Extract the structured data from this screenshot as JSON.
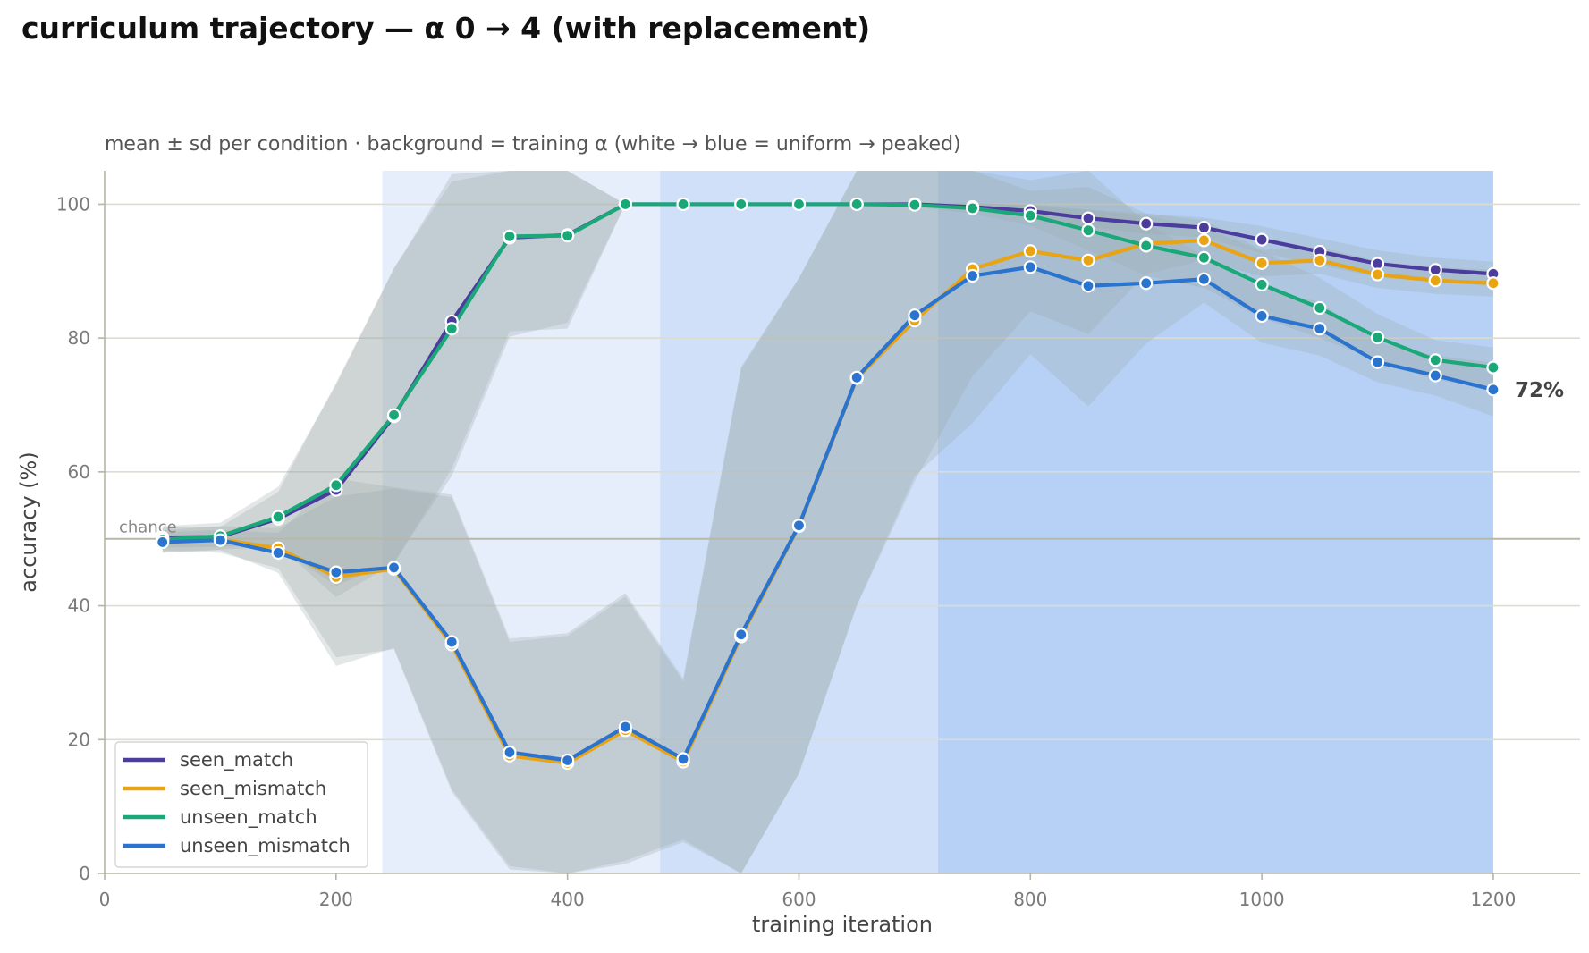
{
  "chart_data": {
    "type": "line",
    "title": "curriculum trajectory — α 0 → 4 (with replacement)",
    "subtitle": "mean ± sd per condition · background = training α (white → blue = uniform → peaked)",
    "xlabel": "training iteration",
    "ylabel": "accuracy (%)",
    "xlim": [
      0,
      1275
    ],
    "ylim": [
      0,
      105
    ],
    "xticks": [
      0,
      200,
      400,
      600,
      800,
      1000,
      1200
    ],
    "yticks": [
      0,
      20,
      40,
      60,
      80,
      100
    ],
    "grid": "horizontal",
    "legend_position": "lower-left",
    "chance": {
      "value": 50,
      "label": "chance"
    },
    "end_label": "72%",
    "background_bands": [
      {
        "x0": 240,
        "x1": 480,
        "color": "#e6eefb"
      },
      {
        "x0": 480,
        "x1": 720,
        "color": "#d0e0f8"
      },
      {
        "x0": 720,
        "x1": 1200,
        "color": "#b6d1f5"
      }
    ],
    "x": [
      50,
      100,
      150,
      200,
      250,
      300,
      350,
      400,
      450,
      500,
      550,
      600,
      650,
      700,
      750,
      800,
      850,
      900,
      950,
      1000,
      1050,
      1100,
      1150,
      1200
    ],
    "series": [
      {
        "name": "seen_match",
        "color": "#4b3c9e",
        "values": [
          50.2,
          50.3,
          53.0,
          57.3,
          68.3,
          82.5,
          95.0,
          95.4,
          100,
          100,
          100,
          100,
          100,
          100,
          99.6,
          99.0,
          97.9,
          97.1,
          96.5,
          94.7,
          92.9,
          91.1,
          90.2,
          89.6
        ],
        "sd": [
          1.5,
          1.5,
          4.0,
          16.0,
          22.0,
          22.0,
          14.0,
          14.0,
          0,
          0,
          0,
          0,
          0,
          0,
          0.5,
          1.0,
          1.3,
          1.5,
          1.5,
          2.0,
          2.0,
          2.0,
          1.8,
          1.8
        ]
      },
      {
        "name": "seen_mismatch",
        "color": "#e8a412",
        "values": [
          49.8,
          49.9,
          48.6,
          44.3,
          45.5,
          34.2,
          17.6,
          16.5,
          21.4,
          16.7,
          35.4,
          51.9,
          74.0,
          82.6,
          90.3,
          93.0,
          91.6,
          94.1,
          94.6,
          91.2,
          91.6,
          89.5,
          88.6,
          88.2
        ],
        "sd": [
          1.5,
          2.0,
          3.0,
          12.0,
          12.0,
          22.0,
          17.0,
          19.0,
          20.0,
          12.0,
          40.0,
          37.0,
          34.0,
          24.0,
          16.0,
          9.0,
          11.0,
          4.5,
          3.0,
          2.0,
          2.0,
          2.0,
          2.0,
          2.0
        ]
      },
      {
        "name": "unseen_match",
        "color": "#1aa878",
        "values": [
          49.9,
          50.4,
          53.3,
          58.0,
          68.5,
          81.4,
          95.2,
          95.3,
          100,
          100,
          100,
          100,
          100,
          99.9,
          99.4,
          98.3,
          96.1,
          93.8,
          92.0,
          88.0,
          84.5,
          80.1,
          76.7,
          75.6
        ],
        "sd": [
          2.0,
          2.0,
          4.5,
          15.0,
          22.0,
          22.0,
          15.0,
          13.0,
          0,
          0,
          0,
          0,
          0,
          0.3,
          0.8,
          1.5,
          3.0,
          4.5,
          4.5,
          5.0,
          4.5,
          3.5,
          3.0,
          3.0
        ]
      },
      {
        "name": "unseen_mismatch",
        "color": "#2a74d0",
        "values": [
          49.5,
          49.8,
          47.9,
          45.0,
          45.7,
          34.6,
          18.1,
          16.9,
          21.9,
          17.1,
          35.7,
          52.0,
          74.1,
          83.4,
          89.3,
          90.6,
          87.8,
          88.2,
          88.8,
          83.3,
          81.4,
          76.4,
          74.4,
          72.3
        ],
        "sd": [
          1.5,
          1.5,
          3.0,
          14.0,
          12.0,
          22.0,
          17.0,
          19.0,
          20.0,
          12.0,
          40.0,
          37.0,
          34.0,
          24.0,
          22.0,
          13.0,
          18.0,
          9.0,
          3.5,
          4.0,
          4.0,
          3.0,
          3.0,
          4.0
        ]
      }
    ]
  }
}
